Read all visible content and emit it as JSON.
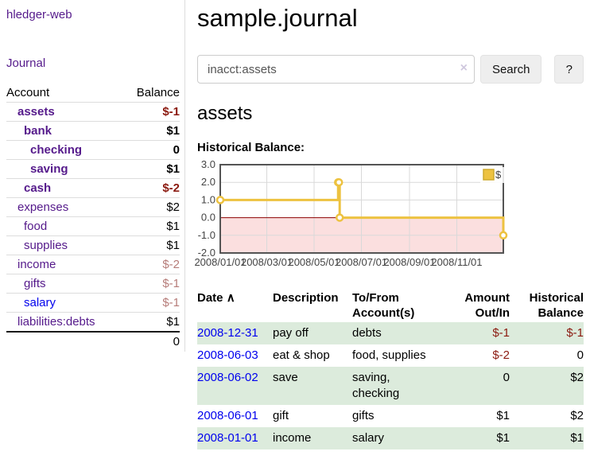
{
  "colors": {
    "link_purple": "#551a8b",
    "link_blue": "#0000ee",
    "negative": "#8b1a10",
    "negative_faded": "#b67c79",
    "row_stripe_green": "#dcebdc",
    "series_yellow": "#edc240",
    "chart_negative_region": "#fbdfdf",
    "chart_zero_line": "#8b0000",
    "chart_grid": "#d9d9d9",
    "chart_border": "#545454",
    "chart_legend_border": "#cdaa2f"
  },
  "sidebar": {
    "brand": "hledger-web",
    "nav_journal": "Journal",
    "accounts": {
      "header_account": "Account",
      "header_balance": "Balance",
      "rows": [
        {
          "name": "assets",
          "balance": "$-1",
          "indent": 0,
          "bold": true,
          "balance_tone": "negative"
        },
        {
          "name": "bank",
          "balance": "$1",
          "indent": 1,
          "bold": true,
          "balance_tone": "normal"
        },
        {
          "name": "checking",
          "balance": "0",
          "indent": 2,
          "bold": true,
          "balance_tone": "normal"
        },
        {
          "name": "saving",
          "balance": "$1",
          "indent": 2,
          "bold": true,
          "balance_tone": "normal"
        },
        {
          "name": "cash",
          "balance": "$-2",
          "indent": 1,
          "bold": true,
          "balance_tone": "negative"
        },
        {
          "name": "expenses",
          "balance": "$2",
          "indent": 0,
          "bold": false,
          "balance_tone": "normal"
        },
        {
          "name": "food",
          "balance": "$1",
          "indent": 1,
          "bold": false,
          "balance_tone": "normal"
        },
        {
          "name": "supplies",
          "balance": "$1",
          "indent": 1,
          "bold": false,
          "balance_tone": "normal"
        },
        {
          "name": "income",
          "balance": "$-2",
          "indent": 0,
          "bold": false,
          "balance_tone": "negative_faded"
        },
        {
          "name": "gifts",
          "balance": "$-1",
          "indent": 1,
          "bold": false,
          "balance_tone": "negative_faded"
        },
        {
          "name": "salary",
          "balance": "$-1",
          "indent": 1,
          "bold": false,
          "balance_tone": "negative_faded",
          "link_tone": "blue"
        },
        {
          "name": "liabilities:debts",
          "balance": "$1",
          "indent": 0,
          "bold": false,
          "balance_tone": "normal"
        }
      ],
      "total": "0"
    }
  },
  "main": {
    "title": "sample.journal",
    "search": {
      "value": "inacct:assets",
      "clear_icon": "×",
      "button": "Search",
      "help": "?"
    },
    "account_heading": "assets",
    "chart_label": "Historical Balance:"
  },
  "chart_data": {
    "type": "line",
    "step": true,
    "title": "Historical Balance:",
    "series": [
      {
        "name": "$",
        "color": "#edc240",
        "points": [
          [
            "2008-01-01",
            1
          ],
          [
            "2008-06-01",
            2
          ],
          [
            "2008-06-02",
            2
          ],
          [
            "2008-06-03",
            0
          ],
          [
            "2008-12-31",
            -1
          ]
        ]
      }
    ],
    "x_range": [
      "2008-01-01",
      "2008-12-31"
    ],
    "x_ticks": [
      "2008/01/01",
      "2008/03/01",
      "2008/05/01",
      "2008/07/01",
      "2008/09/01",
      "2008/11/01"
    ],
    "y_ticks": [
      "3.0",
      "2.0",
      "1.0",
      "0.0",
      "-1.0",
      "-2.0"
    ],
    "ylim": [
      -2,
      3
    ],
    "legend": {
      "label": "$",
      "position": "top-right"
    },
    "grid": true,
    "negative_region": true
  },
  "register": {
    "headers": {
      "date": "Date",
      "sort_icon": "∧",
      "description": "Description",
      "accounts": "To/From Account(s)",
      "amount": "Amount Out/In",
      "balance": "Historical Balance"
    },
    "rows": [
      {
        "date": "2008-12-31",
        "description": "pay off",
        "accounts": "debts",
        "amount": "$-1",
        "amount_negative": true,
        "balance": "$-1",
        "balance_negative": true
      },
      {
        "date": "2008-06-03",
        "description": "eat & shop",
        "accounts": "food, supplies",
        "amount": "$-2",
        "amount_negative": true,
        "balance": "0",
        "balance_negative": false
      },
      {
        "date": "2008-06-02",
        "description": "save",
        "accounts": "saving, checking",
        "amount": "0",
        "amount_negative": false,
        "balance": "$2",
        "balance_negative": false
      },
      {
        "date": "2008-06-01",
        "description": "gift",
        "accounts": "gifts",
        "amount": "$1",
        "amount_negative": false,
        "balance": "$2",
        "balance_negative": false
      },
      {
        "date": "2008-01-01",
        "description": "income",
        "accounts": "salary",
        "amount": "$1",
        "amount_negative": false,
        "balance": "$1",
        "balance_negative": false
      }
    ]
  }
}
